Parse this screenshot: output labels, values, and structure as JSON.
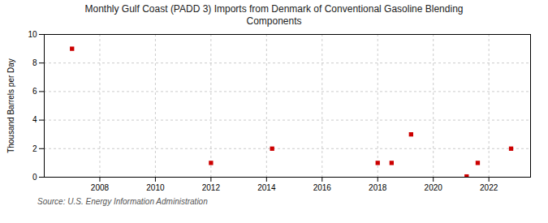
{
  "chart_data": {
    "type": "scatter",
    "title": "Monthly Gulf Coast (PADD 3) Imports from Denmark of Conventional Gasoline Blending\nComponents",
    "ylabel": "Thousand Barrels per Day",
    "source": "Source: U.S. Energy Information Administration",
    "x": [
      2007.0,
      2012.0,
      2014.2,
      2018.0,
      2018.5,
      2019.2,
      2021.2,
      2021.6,
      2022.8
    ],
    "values": [
      9,
      1,
      2,
      1,
      1,
      3,
      0.05,
      1,
      2
    ],
    "color": "#cc0000",
    "marker": "square",
    "xlim": [
      2006.0,
      2023.5
    ],
    "xticks": [
      2008,
      2010,
      2012,
      2014,
      2016,
      2018,
      2020,
      2022
    ],
    "ylim": [
      0,
      10
    ],
    "yticks": [
      0,
      2,
      4,
      6,
      8,
      10
    ],
    "grid": true
  }
}
